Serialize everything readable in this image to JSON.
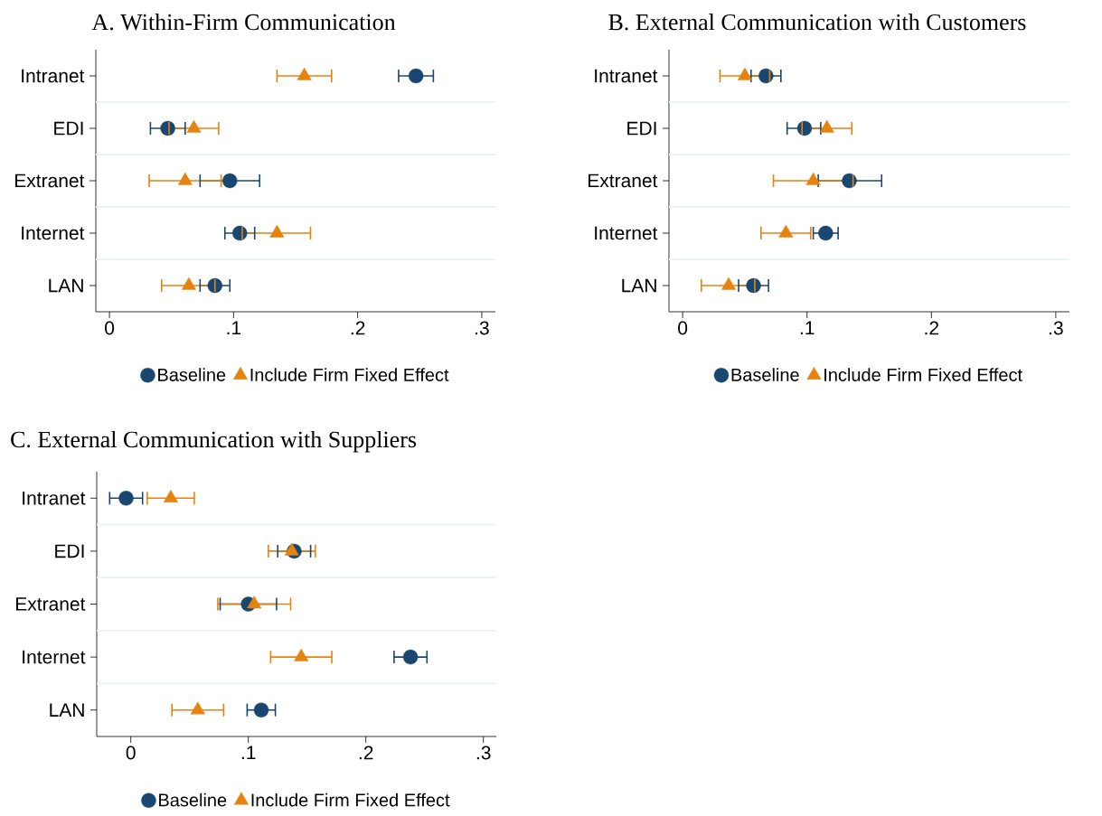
{
  "chart_data": [
    {
      "type": "scatter",
      "orientation": "horizontal",
      "title": "A. Within-Firm Communication",
      "categories": [
        "Intranet",
        "EDI",
        "Extranet",
        "Internet",
        "LAN"
      ],
      "series": [
        {
          "name": "Baseline",
          "color": "#1a476f",
          "marker": "circle",
          "values": [
            0.247,
            0.047,
            0.097,
            0.105,
            0.085
          ],
          "errors": [
            [
              0.233,
              0.261
            ],
            [
              0.033,
              0.061
            ],
            [
              0.073,
              0.121
            ],
            [
              0.093,
              0.117
            ],
            [
              0.073,
              0.097
            ]
          ]
        },
        {
          "name": "Include Firm Fixed Effect",
          "color": "#e6820e",
          "marker": "triangle",
          "values": [
            0.157,
            0.068,
            0.061,
            0.135,
            0.064
          ],
          "errors": [
            [
              0.135,
              0.179
            ],
            [
              0.048,
              0.088
            ],
            [
              0.032,
              0.09
            ],
            [
              0.107,
              0.162
            ],
            [
              0.042,
              0.085
            ]
          ]
        }
      ],
      "xlim": [
        -0.011,
        0.311
      ],
      "xticks": [
        0,
        {
          "value": 0.1,
          "label": ".1"
        },
        {
          "value": 0.2,
          "label": ".2"
        },
        {
          "value": 0.3,
          "label": ".3"
        }
      ],
      "grid": "y",
      "legend": "bottom"
    },
    {
      "type": "scatter",
      "orientation": "horizontal",
      "title": "B. External Communication with Customers",
      "categories": [
        "Intranet",
        "EDI",
        "Extranet",
        "Internet",
        "LAN"
      ],
      "series": [
        {
          "name": "Baseline",
          "color": "#1a476f",
          "marker": "circle",
          "values": [
            0.067,
            0.098,
            0.134,
            0.115,
            0.057
          ],
          "errors": [
            [
              0.055,
              0.079
            ],
            [
              0.084,
              0.111
            ],
            [
              0.109,
              0.16
            ],
            [
              0.105,
              0.125
            ],
            [
              0.045,
              0.069
            ]
          ]
        },
        {
          "name": "Include Firm Fixed Effect",
          "color": "#e6820e",
          "marker": "triangle",
          "values": [
            0.05,
            0.116,
            0.105,
            0.083,
            0.037
          ],
          "errors": [
            [
              0.03,
              0.07
            ],
            [
              0.096,
              0.136
            ],
            [
              0.073,
              0.137
            ],
            [
              0.063,
              0.103
            ],
            [
              0.015,
              0.058
            ]
          ]
        }
      ],
      "xlim": [
        -0.011,
        0.311
      ],
      "xticks": [
        0,
        {
          "value": 0.1,
          "label": ".1"
        },
        {
          "value": 0.2,
          "label": ".2"
        },
        {
          "value": 0.3,
          "label": ".3"
        }
      ],
      "grid": "y",
      "legend": "bottom"
    },
    {
      "type": "scatter",
      "orientation": "horizontal",
      "title": "C. External Communication with Suppliers",
      "categories": [
        "Intranet",
        "EDI",
        "Extranet",
        "Internet",
        "LAN"
      ],
      "series": [
        {
          "name": "Baseline",
          "color": "#1a476f",
          "marker": "circle",
          "values": [
            -0.004,
            0.139,
            0.1,
            0.238,
            0.111
          ],
          "errors": [
            [
              -0.018,
              0.01
            ],
            [
              0.125,
              0.153
            ],
            [
              0.076,
              0.124
            ],
            [
              0.224,
              0.252
            ],
            [
              0.099,
              0.123
            ]
          ]
        },
        {
          "name": "Include Firm Fixed Effect",
          "color": "#e6820e",
          "marker": "triangle",
          "values": [
            0.034,
            0.137,
            0.105,
            0.145,
            0.057
          ],
          "errors": [
            [
              0.014,
              0.054
            ],
            [
              0.117,
              0.157
            ],
            [
              0.074,
              0.136
            ],
            [
              0.119,
              0.171
            ],
            [
              0.035,
              0.079
            ]
          ]
        }
      ],
      "xlim": [
        -0.029,
        0.311
      ],
      "xticks": [
        0,
        {
          "value": 0.1,
          "label": ".1"
        },
        {
          "value": 0.2,
          "label": ".2"
        },
        {
          "value": 0.3,
          "label": ".3"
        }
      ],
      "grid": "y",
      "legend": "bottom"
    }
  ]
}
